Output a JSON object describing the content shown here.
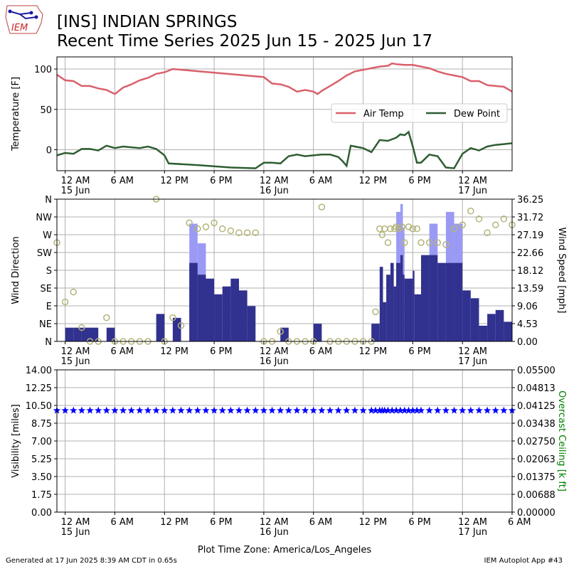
{
  "header": {
    "logo_text": "IEM",
    "title_line1": "[INS] INDIAN SPRINGS",
    "title_line2": "Recent Time Series 2025 Jun 15 - 2025 Jun 17"
  },
  "footer": {
    "generated": "Generated at 17 Jun 2025 8:39 AM CDT in 0.65s",
    "app": "IEM Autoplot App #43",
    "xlabel": "Plot Time Zone: America/Los_Angeles"
  },
  "colors": {
    "air_temp": "#d9606b",
    "dew_point": "#2e5e32",
    "gust_bar": "#9a9af5",
    "speed_bar": "#31318f",
    "direction_marker": "#b4b47a",
    "visibility_marker": "#0000ff",
    "ceiling_axis": "#008000",
    "grid": "#b0b0b0"
  },
  "time_axis": {
    "ticks": [
      {
        "h": 0,
        "label": "12 AM",
        "date": "15 Jun"
      },
      {
        "h": 6,
        "label": "6 AM",
        "date": ""
      },
      {
        "h": 12,
        "label": "12 PM",
        "date": ""
      },
      {
        "h": 18,
        "label": "6 PM",
        "date": ""
      },
      {
        "h": 24,
        "label": "12 AM",
        "date": "16 Jun"
      },
      {
        "h": 30,
        "label": "6 AM",
        "date": ""
      },
      {
        "h": 36,
        "label": "12 PM",
        "date": ""
      },
      {
        "h": 42,
        "label": "6 PM",
        "date": ""
      },
      {
        "h": 48,
        "label": "12 AM",
        "date": "17 Jun"
      }
    ],
    "bottom_extra_tick": {
      "h": 54,
      "label": "6 AM",
      "date": ""
    }
  },
  "chart_data": [
    {
      "type": "line",
      "ylabel": "Temperature [F]",
      "yticks": [
        0,
        50,
        100
      ],
      "ylim": [
        -26,
        115
      ],
      "grid": true,
      "legend_placement": "right",
      "x_unit": "hours since 15 Jun 12 AM",
      "xlim": [
        -1,
        54
      ],
      "series": [
        {
          "name": "Air Temp",
          "points": [
            [
              -1,
              93
            ],
            [
              0,
              86
            ],
            [
              1,
              85
            ],
            [
              2,
              79
            ],
            [
              3,
              79
            ],
            [
              4,
              76
            ],
            [
              5,
              74
            ],
            [
              6,
              69
            ],
            [
              7,
              77
            ],
            [
              8,
              81
            ],
            [
              9,
              86
            ],
            [
              10,
              89
            ],
            [
              11,
              94
            ],
            [
              12,
              96
            ],
            [
              13,
              100
            ],
            [
              24,
              90
            ],
            [
              25,
              82
            ],
            [
              26,
              81
            ],
            [
              27,
              78
            ],
            [
              28,
              72
            ],
            [
              29,
              74
            ],
            [
              30,
              72
            ],
            [
              30.5,
              69
            ],
            [
              31,
              73
            ],
            [
              32,
              79
            ],
            [
              33,
              85
            ],
            [
              34,
              92
            ],
            [
              35,
              97
            ],
            [
              36,
              99
            ],
            [
              37,
              101
            ],
            [
              38,
              103
            ],
            [
              39,
              104
            ],
            [
              39.5,
              107
            ],
            [
              40,
              106
            ],
            [
              41,
              105
            ],
            [
              42,
              105
            ],
            [
              43,
              103
            ],
            [
              44,
              101
            ],
            [
              45,
              97
            ],
            [
              46,
              94
            ],
            [
              47,
              92
            ],
            [
              48,
              90
            ],
            [
              49,
              85
            ],
            [
              50,
              85
            ],
            [
              51,
              80
            ],
            [
              52,
              79
            ],
            [
              53,
              78
            ],
            [
              54,
              72
            ],
            [
              55,
              70
            ]
          ]
        },
        {
          "name": "Dew Point",
          "points": [
            [
              -1,
              -7
            ],
            [
              0,
              -4
            ],
            [
              1,
              -5
            ],
            [
              2,
              1
            ],
            [
              3,
              1
            ],
            [
              4,
              -1
            ],
            [
              5,
              5
            ],
            [
              6,
              2
            ],
            [
              7,
              4
            ],
            [
              8,
              3
            ],
            [
              9,
              2
            ],
            [
              10,
              4
            ],
            [
              11,
              1
            ],
            [
              12,
              -7
            ],
            [
              12.5,
              -17
            ],
            [
              16,
              -19
            ],
            [
              20,
              -22
            ],
            [
              23,
              -23
            ],
            [
              24,
              -16
            ],
            [
              25,
              -16
            ],
            [
              26,
              -17
            ],
            [
              27,
              -8
            ],
            [
              28,
              -6
            ],
            [
              29,
              -8
            ],
            [
              30,
              -7
            ],
            [
              31,
              -6
            ],
            [
              32,
              -6
            ],
            [
              33,
              -9
            ],
            [
              33.5,
              -14
            ],
            [
              34,
              -20
            ],
            [
              34.5,
              5
            ],
            [
              35,
              4
            ],
            [
              36,
              2
            ],
            [
              37,
              -3
            ],
            [
              38,
              12
            ],
            [
              39,
              11
            ],
            [
              40,
              15
            ],
            [
              40.5,
              19
            ],
            [
              41,
              18
            ],
            [
              41.5,
              22
            ],
            [
              42,
              4
            ],
            [
              42.5,
              -16
            ],
            [
              43,
              -16
            ],
            [
              44,
              -6
            ],
            [
              45,
              -8
            ],
            [
              46,
              -22
            ],
            [
              47,
              -23
            ],
            [
              48,
              -5
            ],
            [
              49,
              2
            ],
            [
              50,
              -1
            ],
            [
              51,
              4
            ],
            [
              52,
              6
            ],
            [
              53,
              7
            ],
            [
              54,
              8
            ],
            [
              55,
              8
            ]
          ]
        }
      ]
    },
    {
      "type": "bar",
      "ylabel": "Wind Direction",
      "y2label": "Wind Speed [mph]",
      "direction_ticks": [
        "N",
        "NE",
        "E",
        "SE",
        "S",
        "SW",
        "W",
        "NW",
        "N"
      ],
      "speed_ticks": [
        "0.00",
        "4.53",
        "9.06",
        "13.59",
        "18.12",
        "22.66",
        "27.19",
        "31.72",
        "36.25"
      ],
      "speed_ylim": [
        0,
        36.25
      ],
      "x_unit": "hours since 15 Jun 12 AM",
      "xlim": [
        -1,
        54
      ],
      "series": [
        {
          "name": "Wind Speed",
          "bars": [
            [
              -1,
              0
            ],
            [
              0,
              3.5
            ],
            [
              1,
              3.5
            ],
            [
              2,
              3.5
            ],
            [
              4,
              0
            ],
            [
              5,
              3.5
            ],
            [
              6,
              0
            ],
            [
              11,
              7
            ],
            [
              12,
              0
            ],
            [
              13,
              6
            ],
            [
              14,
              0
            ],
            [
              15,
              20
            ],
            [
              16,
              17
            ],
            [
              17,
              16
            ],
            [
              18,
              12
            ],
            [
              19,
              14
            ],
            [
              20,
              16
            ],
            [
              21,
              13
            ],
            [
              22,
              9
            ],
            [
              23,
              0
            ],
            [
              26,
              3.5
            ],
            [
              27,
              0
            ],
            [
              30,
              4.5
            ],
            [
              31,
              0
            ],
            [
              37,
              4.5
            ],
            [
              38,
              19
            ],
            [
              38.4,
              10
            ],
            [
              38.8,
              17
            ],
            [
              39.3,
              20
            ],
            [
              39.7,
              14
            ],
            [
              40,
              20
            ],
            [
              40.5,
              22
            ],
            [
              40.8,
              17
            ],
            [
              41,
              16
            ],
            [
              42,
              18
            ],
            [
              42.2,
              12
            ],
            [
              43,
              22
            ],
            [
              44,
              22
            ],
            [
              45,
              20
            ],
            [
              46,
              20
            ],
            [
              47,
              20
            ],
            [
              48,
              13
            ],
            [
              49,
              11
            ],
            [
              50,
              4
            ],
            [
              51,
              7
            ],
            [
              52,
              8
            ],
            [
              53,
              5
            ],
            [
              54,
              0
            ]
          ]
        },
        {
          "name": "Wind Gust",
          "bars": [
            [
              15,
              30
            ],
            [
              16,
              25
            ],
            [
              40,
              33
            ],
            [
              40.5,
              35
            ],
            [
              40.8,
              29
            ],
            [
              44,
              30
            ],
            [
              46,
              33
            ],
            [
              47,
              30
            ]
          ]
        },
        {
          "name": "Wind Direction",
          "points": [
            [
              -1,
              250
            ],
            [
              0,
              100
            ],
            [
              1,
              125
            ],
            [
              2,
              35
            ],
            [
              3,
              0
            ],
            [
              4,
              0
            ],
            [
              5,
              60
            ],
            [
              6,
              0
            ],
            [
              7,
              0
            ],
            [
              8,
              0
            ],
            [
              9,
              0
            ],
            [
              10,
              0
            ],
            [
              11,
              360
            ],
            [
              12,
              0
            ],
            [
              13,
              60
            ],
            [
              14,
              40
            ],
            [
              15,
              300
            ],
            [
              16,
              285
            ],
            [
              17,
              290
            ],
            [
              18,
              300
            ],
            [
              19,
              285
            ],
            [
              20,
              280
            ],
            [
              21,
              275
            ],
            [
              22,
              275
            ],
            [
              23,
              275
            ],
            [
              24,
              0
            ],
            [
              25,
              0
            ],
            [
              26,
              25
            ],
            [
              27,
              0
            ],
            [
              28,
              0
            ],
            [
              29,
              0
            ],
            [
              30,
              0
            ],
            [
              31,
              340
            ],
            [
              32,
              0
            ],
            [
              33,
              0
            ],
            [
              34,
              0
            ],
            [
              35,
              0
            ],
            [
              36,
              0
            ],
            [
              37,
              0
            ],
            [
              37.5,
              75
            ],
            [
              38,
              285
            ],
            [
              38.3,
              270
            ],
            [
              38.6,
              285
            ],
            [
              39,
              250
            ],
            [
              39.3,
              285
            ],
            [
              39.8,
              285
            ],
            [
              40,
              290
            ],
            [
              40.3,
              285
            ],
            [
              40.7,
              290
            ],
            [
              41,
              250
            ],
            [
              41.5,
              290
            ],
            [
              42,
              285
            ],
            [
              42.5,
              285
            ],
            [
              43,
              250
            ],
            [
              44,
              250
            ],
            [
              45,
              250
            ],
            [
              46,
              245
            ],
            [
              47,
              285
            ],
            [
              48,
              295
            ],
            [
              49,
              330
            ],
            [
              50,
              310
            ],
            [
              51,
              275
            ],
            [
              52,
              295
            ],
            [
              53,
              310
            ],
            [
              54,
              295
            ]
          ]
        }
      ]
    },
    {
      "type": "scatter",
      "ylabel": "Visibility [miles]",
      "y2label": "Overcast Ceiling [k ft]",
      "vis_ticks": [
        "0.00",
        "1.75",
        "3.50",
        "5.25",
        "7.00",
        "8.75",
        "10.50",
        "12.25",
        "14.00"
      ],
      "ceiling_ticks": [
        "0.00000",
        "0.00688",
        "0.01375",
        "0.02063",
        "0.02750",
        "0.03438",
        "0.04125",
        "0.04813",
        "0.05500"
      ],
      "ylim": [
        0,
        14
      ],
      "x_unit": "hours since 15 Jun 12 AM",
      "xlim": [
        -1,
        54
      ],
      "series": [
        {
          "name": "Visibility",
          "y": 10,
          "x": [
            -1,
            0,
            1,
            2,
            3,
            4,
            5,
            6,
            7,
            8,
            9,
            10,
            11,
            12,
            13,
            14,
            15,
            16,
            17,
            18,
            19,
            20,
            21,
            22,
            23,
            24,
            25,
            26,
            27,
            28,
            29,
            30,
            31,
            32,
            33,
            34,
            35,
            36,
            37,
            37.5,
            38,
            38.3,
            38.6,
            39,
            39.5,
            40,
            40.5,
            41,
            41.5,
            42,
            42.5,
            43,
            44,
            45,
            46,
            47,
            48,
            49,
            50,
            51,
            52,
            53,
            54
          ]
        }
      ]
    }
  ]
}
